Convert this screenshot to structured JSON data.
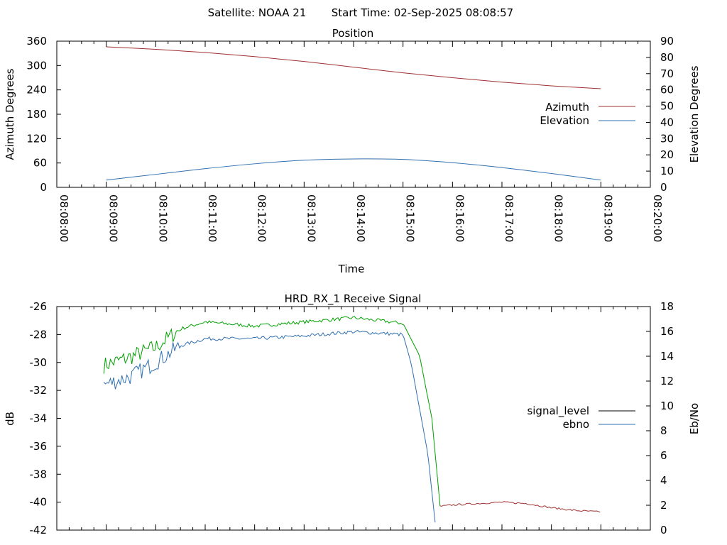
{
  "header": {
    "satellite_label": "Satellite: NOAA 21",
    "start_time_label": "Start Time: 02-Sep-2025 08:08:57"
  },
  "colors": {
    "azimuth": "#a03030",
    "elevation": "#3070b0",
    "signal_level": "#000000",
    "ebno": "#3070b0",
    "signal_series_1": "#00a000",
    "signal_series_2": "#3070b0",
    "signal_tail": "#a03030"
  },
  "chart_data": [
    {
      "type": "line",
      "title": "Position",
      "xlabel": "Time",
      "ylabel": "Azimuth Degrees",
      "y2label": "Elevation Degrees",
      "x_unit": "minutes",
      "x_ticks": [
        "08:08:00",
        "08:09:00",
        "08:10:00",
        "08:11:00",
        "08:12:00",
        "08:13:00",
        "08:14:00",
        "08:15:00",
        "08:16:00",
        "08:17:00",
        "08:18:00",
        "08:19:00",
        "08:20:00"
      ],
      "xlim": [
        "08:08:00",
        "08:20:00"
      ],
      "ylim": [
        0,
        360
      ],
      "yticks": [
        0,
        60,
        120,
        180,
        240,
        300,
        360
      ],
      "y2lim": [
        0,
        90
      ],
      "y2ticks": [
        0,
        10,
        20,
        30,
        40,
        50,
        60,
        70,
        80,
        90
      ],
      "legend": "right",
      "series": [
        {
          "name": "Azimuth",
          "axis": "y",
          "x": [
            "08:09:00",
            "08:10:00",
            "08:11:00",
            "08:12:00",
            "08:13:00",
            "08:14:00",
            "08:15:00",
            "08:16:00",
            "08:17:00",
            "08:18:00",
            "08:19:00"
          ],
          "values": [
            346,
            340,
            332,
            322,
            310,
            296,
            282,
            270,
            259,
            250,
            243
          ]
        },
        {
          "name": "Elevation",
          "axis": "y2",
          "x": [
            "08:09:00",
            "08:10:00",
            "08:11:00",
            "08:12:00",
            "08:13:00",
            "08:14:00",
            "08:15:00",
            "08:16:00",
            "08:17:00",
            "08:18:00",
            "08:19:00"
          ],
          "values": [
            4.5,
            8,
            11.5,
            14.5,
            16.7,
            17.5,
            17.2,
            15.2,
            12.2,
            8.5,
            4.5
          ]
        }
      ]
    },
    {
      "type": "line",
      "title": "HRD_RX_1 Receive Signal",
      "ylabel": "dB",
      "y2label": "Eb/No",
      "xlim": [
        "08:08:00",
        "08:20:00"
      ],
      "ylim": [
        -42,
        -26
      ],
      "yticks": [
        -42,
        -40,
        -38,
        -36,
        -34,
        -32,
        -30,
        -28,
        -26
      ],
      "y2lim": [
        0,
        18
      ],
      "y2ticks": [
        0,
        2,
        4,
        6,
        8,
        10,
        12,
        14,
        16,
        18
      ],
      "legend": "right",
      "legend_entries": [
        {
          "name": "signal_level",
          "color": "#000000"
        },
        {
          "name": "ebno",
          "color": "#3070b0"
        }
      ],
      "series": [
        {
          "axis": "y",
          "color": "#00a000",
          "x": [
            "08:08:57",
            "08:09:30",
            "08:10:00",
            "08:10:30",
            "08:11:00",
            "08:12:00",
            "08:13:00",
            "08:14:00",
            "08:15:00",
            "08:15:20",
            "08:15:35",
            "08:15:45"
          ],
          "values": [
            -30.2,
            -29.6,
            -28.9,
            -27.6,
            -27.1,
            -27.4,
            -27.1,
            -26.8,
            -27.2,
            -29.5,
            -34.0,
            -40.3
          ]
        },
        {
          "axis": "y",
          "color": "#3070b0",
          "x": [
            "08:08:57",
            "08:09:30",
            "08:10:00",
            "08:10:30",
            "08:11:00",
            "08:12:00",
            "08:13:00",
            "08:14:00",
            "08:15:00",
            "08:15:10",
            "08:15:30",
            "08:15:40"
          ],
          "values": [
            -31.6,
            -31.0,
            -30.0,
            -28.8,
            -28.3,
            -28.3,
            -28.1,
            -27.8,
            -28.0,
            -30.1,
            -36.5,
            -42.0
          ]
        },
        {
          "axis": "y",
          "color": "#a03030",
          "x": [
            "08:15:45",
            "08:16:00",
            "08:16:30",
            "08:17:00",
            "08:17:30",
            "08:18:00",
            "08:18:30",
            "08:19:00"
          ],
          "values": [
            -40.3,
            -40.2,
            -40.1,
            -40.0,
            -40.1,
            -40.4,
            -40.6,
            -40.7
          ]
        }
      ]
    }
  ]
}
